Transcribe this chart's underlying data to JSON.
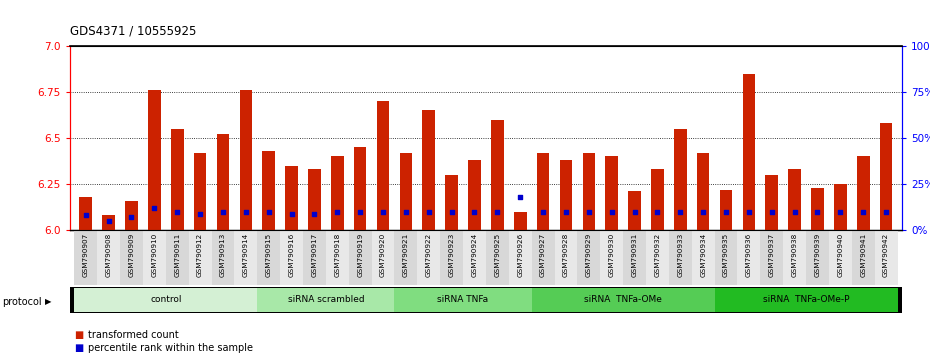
{
  "title": "GDS4371 / 10555925",
  "samples": [
    "GSM790907",
    "GSM790908",
    "GSM790909",
    "GSM790910",
    "GSM790911",
    "GSM790912",
    "GSM790913",
    "GSM790914",
    "GSM790915",
    "GSM790916",
    "GSM790917",
    "GSM790918",
    "GSM790919",
    "GSM790920",
    "GSM790921",
    "GSM790922",
    "GSM790923",
    "GSM790924",
    "GSM790925",
    "GSM790926",
    "GSM790927",
    "GSM790928",
    "GSM790929",
    "GSM790930",
    "GSM790931",
    "GSM790932",
    "GSM790933",
    "GSM790934",
    "GSM790935",
    "GSM790936",
    "GSM790937",
    "GSM790938",
    "GSM790939",
    "GSM790940",
    "GSM790941",
    "GSM790942"
  ],
  "red_values": [
    6.18,
    6.08,
    6.16,
    6.76,
    6.55,
    6.42,
    6.52,
    6.76,
    6.43,
    6.35,
    6.33,
    6.4,
    6.45,
    6.7,
    6.42,
    6.65,
    6.3,
    6.38,
    6.6,
    6.1,
    6.42,
    6.38,
    6.42,
    6.4,
    6.21,
    6.33,
    6.55,
    6.42,
    6.22,
    6.85,
    6.3,
    6.33,
    6.23,
    6.25,
    6.4,
    6.58
  ],
  "blue_percentiles": [
    8,
    5,
    7,
    12,
    10,
    9,
    10,
    10,
    10,
    9,
    9,
    10,
    10,
    10,
    10,
    10,
    10,
    10,
    10,
    18,
    10,
    10,
    10,
    10,
    10,
    10,
    10,
    10,
    10,
    10,
    10,
    10,
    10,
    10,
    10,
    10
  ],
  "groups": [
    {
      "label": "control",
      "start": 0,
      "end": 8,
      "color": "#d4f0d4"
    },
    {
      "label": "siRNA scrambled",
      "start": 8,
      "end": 14,
      "color": "#a8e8a8"
    },
    {
      "label": "siRNA TNFa",
      "start": 14,
      "end": 20,
      "color": "#80dd80"
    },
    {
      "label": "siRNA  TNFa-OMe",
      "start": 20,
      "end": 28,
      "color": "#55cc55"
    },
    {
      "label": "siRNA  TNFa-OMe-P",
      "start": 28,
      "end": 36,
      "color": "#22bb22"
    }
  ],
  "ylim_left": [
    6.0,
    7.0
  ],
  "ylim_right": [
    0,
    100
  ],
  "yticks_left": [
    6.0,
    6.25,
    6.5,
    6.75,
    7.0
  ],
  "yticks_right": [
    0,
    25,
    50,
    75,
    100
  ],
  "bar_color": "#cc2200",
  "blue_color": "#0000cc",
  "bar_width": 0.55,
  "background_color": "#ffffff",
  "plot_bg_color": "#ffffff",
  "legend_items": [
    "transformed count",
    "percentile rank within the sample"
  ],
  "protocol_label": "protocol"
}
